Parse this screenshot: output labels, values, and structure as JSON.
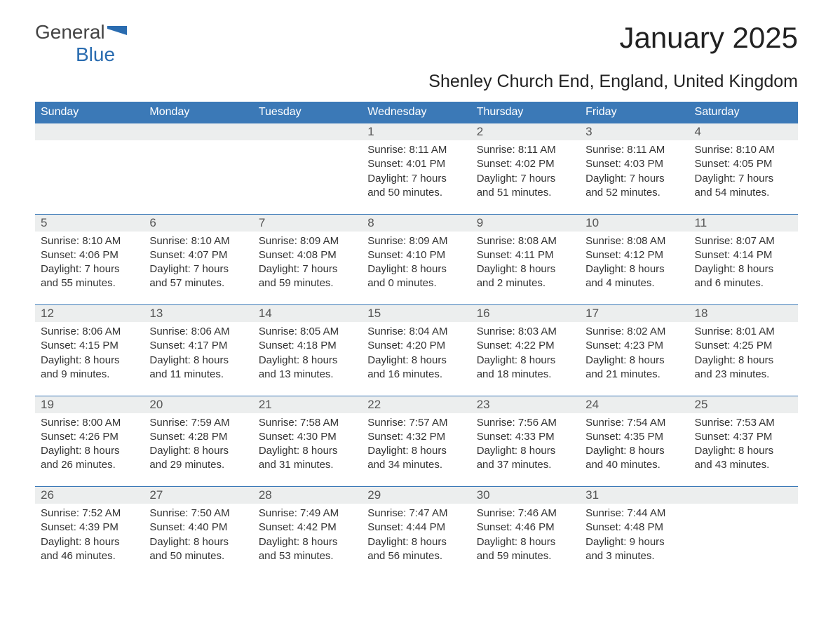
{
  "brand": {
    "name1": "General",
    "name2": "Blue"
  },
  "title": "January 2025",
  "location": "Shenley Church End, England, United Kingdom",
  "colors": {
    "header_bg": "#3b79b7",
    "header_text": "#ffffff",
    "daynum_bg": "#eceeee",
    "row_divider": "#3b79b7",
    "text": "#333333",
    "brand_blue": "#2a6cb0"
  },
  "weekdays": [
    "Sunday",
    "Monday",
    "Tuesday",
    "Wednesday",
    "Thursday",
    "Friday",
    "Saturday"
  ],
  "weeks": [
    [
      null,
      null,
      null,
      {
        "d": "1",
        "sunrise": "Sunrise: 8:11 AM",
        "sunset": "Sunset: 4:01 PM",
        "day1": "Daylight: 7 hours",
        "day2": "and 50 minutes."
      },
      {
        "d": "2",
        "sunrise": "Sunrise: 8:11 AM",
        "sunset": "Sunset: 4:02 PM",
        "day1": "Daylight: 7 hours",
        "day2": "and 51 minutes."
      },
      {
        "d": "3",
        "sunrise": "Sunrise: 8:11 AM",
        "sunset": "Sunset: 4:03 PM",
        "day1": "Daylight: 7 hours",
        "day2": "and 52 minutes."
      },
      {
        "d": "4",
        "sunrise": "Sunrise: 8:10 AM",
        "sunset": "Sunset: 4:05 PM",
        "day1": "Daylight: 7 hours",
        "day2": "and 54 minutes."
      }
    ],
    [
      {
        "d": "5",
        "sunrise": "Sunrise: 8:10 AM",
        "sunset": "Sunset: 4:06 PM",
        "day1": "Daylight: 7 hours",
        "day2": "and 55 minutes."
      },
      {
        "d": "6",
        "sunrise": "Sunrise: 8:10 AM",
        "sunset": "Sunset: 4:07 PM",
        "day1": "Daylight: 7 hours",
        "day2": "and 57 minutes."
      },
      {
        "d": "7",
        "sunrise": "Sunrise: 8:09 AM",
        "sunset": "Sunset: 4:08 PM",
        "day1": "Daylight: 7 hours",
        "day2": "and 59 minutes."
      },
      {
        "d": "8",
        "sunrise": "Sunrise: 8:09 AM",
        "sunset": "Sunset: 4:10 PM",
        "day1": "Daylight: 8 hours",
        "day2": "and 0 minutes."
      },
      {
        "d": "9",
        "sunrise": "Sunrise: 8:08 AM",
        "sunset": "Sunset: 4:11 PM",
        "day1": "Daylight: 8 hours",
        "day2": "and 2 minutes."
      },
      {
        "d": "10",
        "sunrise": "Sunrise: 8:08 AM",
        "sunset": "Sunset: 4:12 PM",
        "day1": "Daylight: 8 hours",
        "day2": "and 4 minutes."
      },
      {
        "d": "11",
        "sunrise": "Sunrise: 8:07 AM",
        "sunset": "Sunset: 4:14 PM",
        "day1": "Daylight: 8 hours",
        "day2": "and 6 minutes."
      }
    ],
    [
      {
        "d": "12",
        "sunrise": "Sunrise: 8:06 AM",
        "sunset": "Sunset: 4:15 PM",
        "day1": "Daylight: 8 hours",
        "day2": "and 9 minutes."
      },
      {
        "d": "13",
        "sunrise": "Sunrise: 8:06 AM",
        "sunset": "Sunset: 4:17 PM",
        "day1": "Daylight: 8 hours",
        "day2": "and 11 minutes."
      },
      {
        "d": "14",
        "sunrise": "Sunrise: 8:05 AM",
        "sunset": "Sunset: 4:18 PM",
        "day1": "Daylight: 8 hours",
        "day2": "and 13 minutes."
      },
      {
        "d": "15",
        "sunrise": "Sunrise: 8:04 AM",
        "sunset": "Sunset: 4:20 PM",
        "day1": "Daylight: 8 hours",
        "day2": "and 16 minutes."
      },
      {
        "d": "16",
        "sunrise": "Sunrise: 8:03 AM",
        "sunset": "Sunset: 4:22 PM",
        "day1": "Daylight: 8 hours",
        "day2": "and 18 minutes."
      },
      {
        "d": "17",
        "sunrise": "Sunrise: 8:02 AM",
        "sunset": "Sunset: 4:23 PM",
        "day1": "Daylight: 8 hours",
        "day2": "and 21 minutes."
      },
      {
        "d": "18",
        "sunrise": "Sunrise: 8:01 AM",
        "sunset": "Sunset: 4:25 PM",
        "day1": "Daylight: 8 hours",
        "day2": "and 23 minutes."
      }
    ],
    [
      {
        "d": "19",
        "sunrise": "Sunrise: 8:00 AM",
        "sunset": "Sunset: 4:26 PM",
        "day1": "Daylight: 8 hours",
        "day2": "and 26 minutes."
      },
      {
        "d": "20",
        "sunrise": "Sunrise: 7:59 AM",
        "sunset": "Sunset: 4:28 PM",
        "day1": "Daylight: 8 hours",
        "day2": "and 29 minutes."
      },
      {
        "d": "21",
        "sunrise": "Sunrise: 7:58 AM",
        "sunset": "Sunset: 4:30 PM",
        "day1": "Daylight: 8 hours",
        "day2": "and 31 minutes."
      },
      {
        "d": "22",
        "sunrise": "Sunrise: 7:57 AM",
        "sunset": "Sunset: 4:32 PM",
        "day1": "Daylight: 8 hours",
        "day2": "and 34 minutes."
      },
      {
        "d": "23",
        "sunrise": "Sunrise: 7:56 AM",
        "sunset": "Sunset: 4:33 PM",
        "day1": "Daylight: 8 hours",
        "day2": "and 37 minutes."
      },
      {
        "d": "24",
        "sunrise": "Sunrise: 7:54 AM",
        "sunset": "Sunset: 4:35 PM",
        "day1": "Daylight: 8 hours",
        "day2": "and 40 minutes."
      },
      {
        "d": "25",
        "sunrise": "Sunrise: 7:53 AM",
        "sunset": "Sunset: 4:37 PM",
        "day1": "Daylight: 8 hours",
        "day2": "and 43 minutes."
      }
    ],
    [
      {
        "d": "26",
        "sunrise": "Sunrise: 7:52 AM",
        "sunset": "Sunset: 4:39 PM",
        "day1": "Daylight: 8 hours",
        "day2": "and 46 minutes."
      },
      {
        "d": "27",
        "sunrise": "Sunrise: 7:50 AM",
        "sunset": "Sunset: 4:40 PM",
        "day1": "Daylight: 8 hours",
        "day2": "and 50 minutes."
      },
      {
        "d": "28",
        "sunrise": "Sunrise: 7:49 AM",
        "sunset": "Sunset: 4:42 PM",
        "day1": "Daylight: 8 hours",
        "day2": "and 53 minutes."
      },
      {
        "d": "29",
        "sunrise": "Sunrise: 7:47 AM",
        "sunset": "Sunset: 4:44 PM",
        "day1": "Daylight: 8 hours",
        "day2": "and 56 minutes."
      },
      {
        "d": "30",
        "sunrise": "Sunrise: 7:46 AM",
        "sunset": "Sunset: 4:46 PM",
        "day1": "Daylight: 8 hours",
        "day2": "and 59 minutes."
      },
      {
        "d": "31",
        "sunrise": "Sunrise: 7:44 AM",
        "sunset": "Sunset: 4:48 PM",
        "day1": "Daylight: 9 hours",
        "day2": "and 3 minutes."
      },
      null
    ]
  ]
}
